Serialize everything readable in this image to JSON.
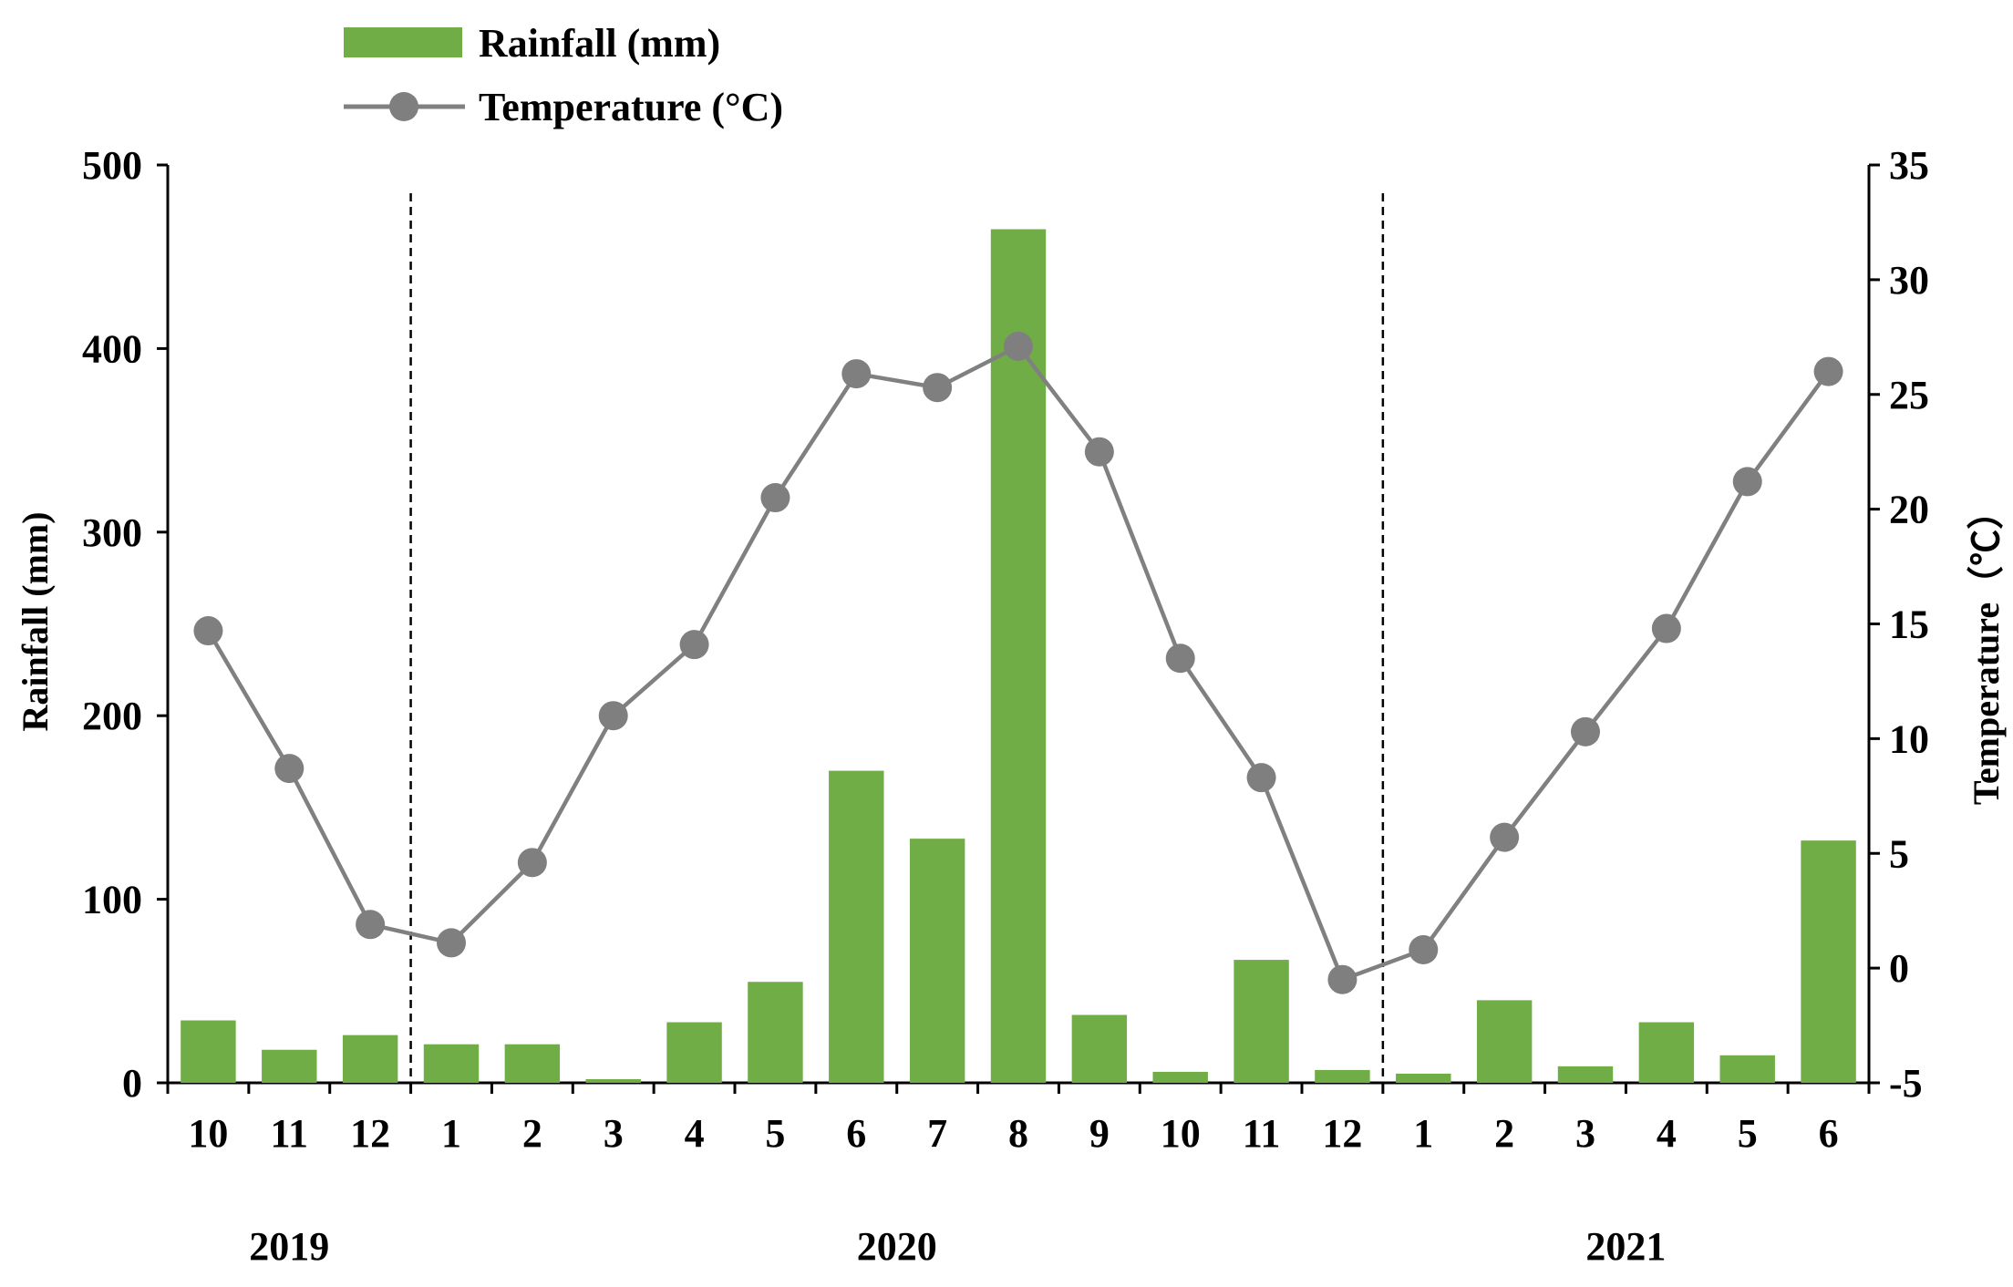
{
  "chart_data": {
    "type": "bar+line",
    "categories": [
      "10",
      "11",
      "12",
      "1",
      "2",
      "3",
      "4",
      "5",
      "6",
      "7",
      "8",
      "9",
      "10",
      "11",
      "12",
      "1",
      "2",
      "3",
      "4",
      "5",
      "6"
    ],
    "series": [
      {
        "name": "Rainfall (mm)",
        "type": "bar",
        "axis": "left",
        "color": "#70AD47",
        "values": [
          34,
          18,
          26,
          21,
          21,
          2,
          33,
          55,
          170,
          133,
          465,
          37,
          6,
          67,
          7,
          5,
          45,
          9,
          33,
          15,
          132
        ]
      },
      {
        "name": "Temperature (°C)",
        "type": "line",
        "axis": "right",
        "color": "#808080",
        "marker_color": "#7F7F7F",
        "values": [
          14.7,
          8.7,
          1.9,
          1.1,
          4.6,
          11.0,
          14.1,
          20.5,
          25.9,
          25.3,
          27.1,
          22.5,
          13.5,
          8.3,
          -0.5,
          0.8,
          5.7,
          10.3,
          14.8,
          21.2,
          26.0
        ]
      }
    ],
    "years": [
      {
        "label": "2019",
        "from_index": 0,
        "to_index": 2
      },
      {
        "label": "2020",
        "from_index": 3,
        "to_index": 14
      },
      {
        "label": "2021",
        "from_index": 15,
        "to_index": 20
      }
    ],
    "year_dividers_after_index": [
      2,
      14
    ],
    "y_left": {
      "label": "Rainfall (mm)",
      "min": 0,
      "max": 500,
      "ticks": [
        0,
        100,
        200,
        300,
        400,
        500
      ]
    },
    "y_right": {
      "label": "Temperature（℃）",
      "min": -5,
      "max": 35,
      "ticks": [
        -5,
        0,
        5,
        10,
        15,
        20,
        25,
        30,
        35
      ]
    },
    "legend": {
      "position": "top-left",
      "items": [
        "Rainfall (mm)",
        "Temperature (°C)"
      ]
    },
    "grid": false
  }
}
